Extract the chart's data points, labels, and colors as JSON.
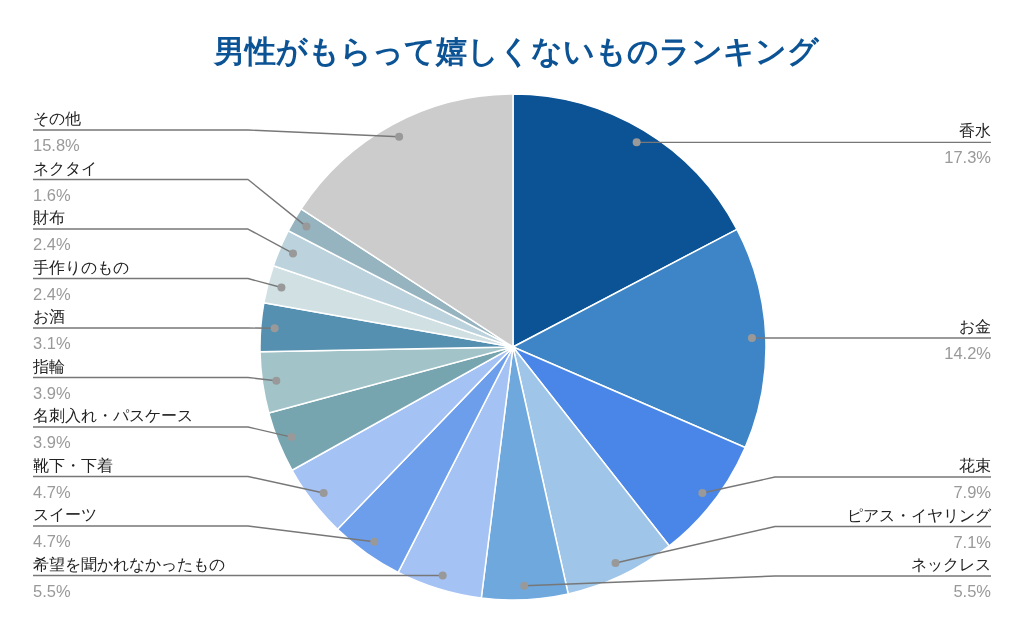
{
  "chart_data": {
    "type": "pie",
    "title": "男性がもらって嬉しくないものランキング",
    "categories": [
      "香水",
      "お金",
      "花束",
      "ピアス・イヤリング",
      "ネックレス",
      "希望を聞かれなかったもの",
      "スイーツ",
      "靴下・下着",
      "名刺入れ・パスケース",
      "指輪",
      "お酒",
      "手作りのもの",
      "財布",
      "ネクタイ",
      "その他"
    ],
    "values": [
      17.3,
      14.2,
      7.9,
      7.1,
      5.5,
      5.5,
      4.7,
      4.7,
      3.9,
      3.9,
      3.1,
      2.4,
      2.4,
      1.6,
      15.8
    ],
    "value_labels": [
      "17.3%",
      "14.2%",
      "7.9%",
      "7.1%",
      "5.5%",
      "5.5%",
      "4.7%",
      "4.7%",
      "3.9%",
      "3.9%",
      "3.1%",
      "2.4%",
      "2.4%",
      "1.6%",
      "15.8%"
    ],
    "colors": [
      "#0b5394",
      "#3d85c6",
      "#4a86e8",
      "#9fc5e8",
      "#6fa8dc",
      "#a4c2f4",
      "#6d9eeb",
      "#a4c2f4",
      "#76a5af",
      "#a2c4c9",
      "#5590b0",
      "#d0e0e3",
      "#bcd3de",
      "#96b3c0",
      "#cccccc"
    ]
  }
}
